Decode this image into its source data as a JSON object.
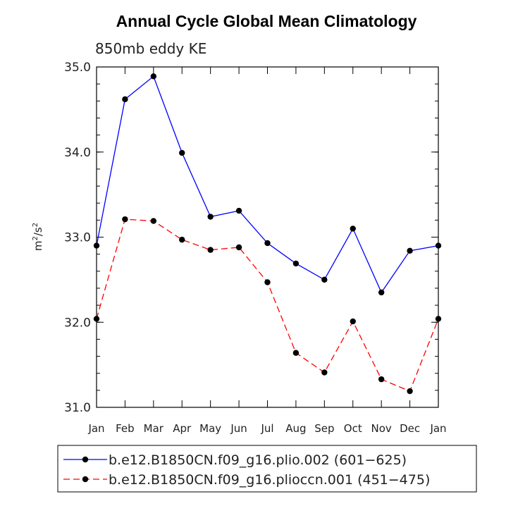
{
  "chart_data": {
    "type": "line",
    "title": "Annual Cycle Global Mean Climatology",
    "subtitle": "850mb eddy KE",
    "ylabel_base": "m",
    "ylabel_mid": "/s",
    "ylabel_exp": "2",
    "ylim": [
      31.0,
      35.0
    ],
    "yticks": [
      "31.0",
      "32.0",
      "33.0",
      "34.0",
      "35.0"
    ],
    "categories": [
      "Jan",
      "Feb",
      "Mar",
      "Apr",
      "May",
      "Jun",
      "Jul",
      "Aug",
      "Sep",
      "Oct",
      "Nov",
      "Dec",
      "Jan"
    ],
    "series": [
      {
        "name": "b.e12.B1850CN.f09_g16.plio.002 (601−625)",
        "color": "#0000ff",
        "dash": "solid",
        "values": [
          32.9,
          34.62,
          34.89,
          33.99,
          33.24,
          33.31,
          32.93,
          32.69,
          32.5,
          33.1,
          32.35,
          32.84,
          32.9
        ]
      },
      {
        "name": "b.e12.B1850CN.f09_g16.plioccn.001 (451−475)",
        "color": "#ff0000",
        "dash": "dashed",
        "values": [
          32.04,
          33.21,
          33.19,
          32.97,
          32.85,
          32.88,
          32.47,
          31.64,
          31.41,
          32.01,
          31.33,
          31.19,
          32.04
        ]
      }
    ]
  }
}
